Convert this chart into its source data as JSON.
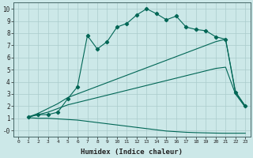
{
  "bg_color": "#cce8e8",
  "grid_color": "#aacccc",
  "line_color": "#006655",
  "xlabel": "Humidex (Indice chaleur)",
  "xlim": [
    -0.5,
    23.5
  ],
  "ylim": [
    -0.5,
    10.5
  ],
  "xticks": [
    0,
    1,
    2,
    3,
    4,
    5,
    6,
    7,
    8,
    9,
    10,
    11,
    12,
    13,
    14,
    15,
    16,
    17,
    18,
    19,
    20,
    21,
    22,
    23
  ],
  "yticks": [
    0,
    1,
    2,
    3,
    4,
    5,
    6,
    7,
    8,
    9,
    10
  ],
  "ytick_labels": [
    "-0",
    "1",
    "2",
    "3",
    "4",
    "5",
    "6",
    "7",
    "8",
    "9",
    "10"
  ],
  "curve_main_x": [
    1,
    2,
    3,
    4,
    5,
    6,
    7,
    8,
    9,
    10,
    11,
    12,
    13,
    14,
    15,
    16,
    17,
    18,
    19,
    20,
    21,
    22,
    23
  ],
  "curve_main_y": [
    1.1,
    1.3,
    1.3,
    1.5,
    2.6,
    3.6,
    7.8,
    6.7,
    7.3,
    8.5,
    8.8,
    9.5,
    10.0,
    9.6,
    9.1,
    9.4,
    8.5,
    8.3,
    8.2,
    7.7,
    7.5,
    3.1,
    2.0
  ],
  "curve_top_x": [
    1,
    2,
    3,
    4,
    5,
    20,
    21,
    22,
    23
  ],
  "curve_top_y": [
    1.1,
    1.4,
    1.8,
    2.2,
    2.7,
    7.3,
    7.5,
    3.2,
    2.0
  ],
  "curve_mid_x": [
    1,
    2,
    3,
    4,
    5,
    20,
    21,
    22,
    23
  ],
  "curve_mid_y": [
    1.1,
    1.3,
    1.5,
    1.8,
    2.1,
    5.1,
    5.2,
    3.0,
    1.9
  ],
  "curve_bot_x": [
    1,
    2,
    3,
    4,
    5,
    6,
    7,
    8,
    9,
    10,
    11,
    12,
    13,
    14,
    15,
    16,
    17,
    18,
    19,
    20,
    21,
    22,
    23
  ],
  "curve_bot_y": [
    1.05,
    1.0,
    1.0,
    0.95,
    0.9,
    0.85,
    0.75,
    0.65,
    0.55,
    0.45,
    0.35,
    0.25,
    0.15,
    0.05,
    -0.05,
    -0.1,
    -0.15,
    -0.18,
    -0.2,
    -0.22,
    -0.23,
    -0.23,
    -0.23
  ]
}
